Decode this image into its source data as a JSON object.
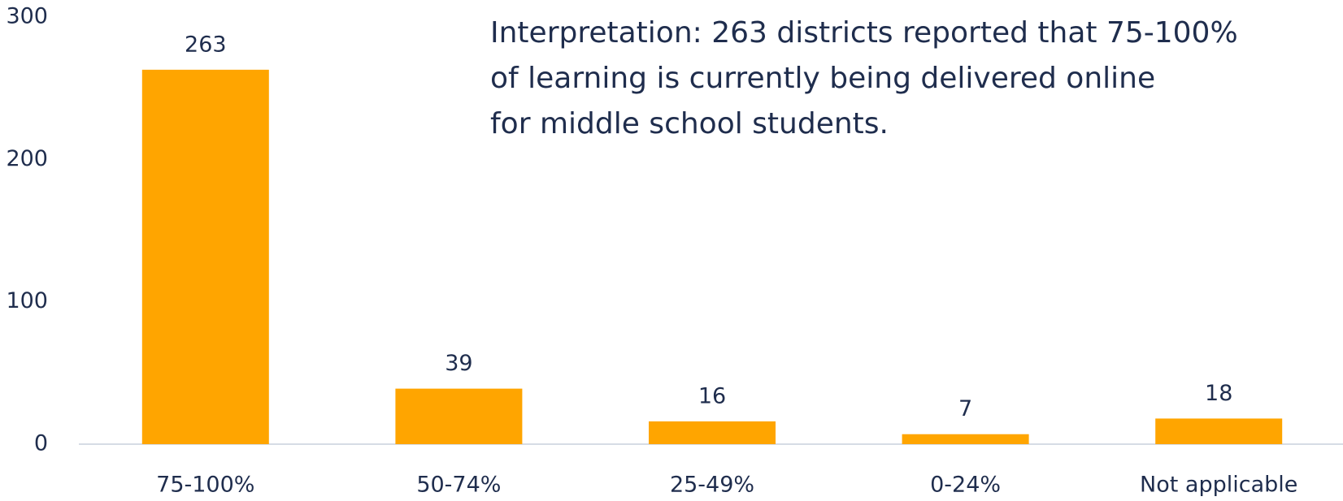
{
  "chart_data": {
    "type": "bar",
    "categories": [
      "75-100%",
      "50-74%",
      "25-49%",
      "0-24%",
      "Not applicable"
    ],
    "values": [
      263,
      39,
      16,
      7,
      18
    ],
    "color": "#ffa500",
    "ylim": [
      0,
      300
    ],
    "yticks": [
      0,
      100,
      200,
      300
    ],
    "grid": false,
    "annotation": [
      "Interpretation: 263 districts reported that 75-100%",
      "of learning is currently being delivered online",
      "for middle school students."
    ]
  }
}
